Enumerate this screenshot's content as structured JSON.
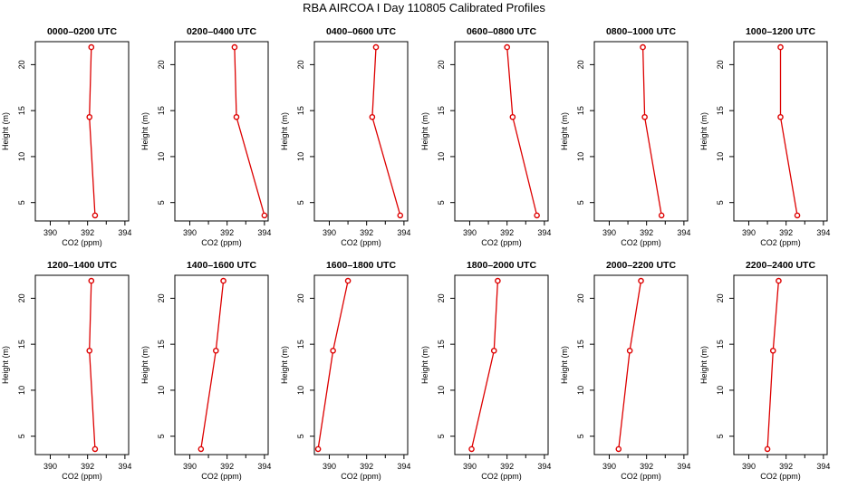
{
  "page": {
    "title": "RBA AIRCOA I  Day 110805  Calibrated Profiles"
  },
  "style": {
    "line_color": "#dd0000",
    "marker_color": "#dd0000",
    "axis_color": "#000000"
  },
  "chart_data": [
    {
      "type": "line",
      "title": "0000–0200 UTC",
      "xlabel": "CO2 (ppm)",
      "ylabel": "Height (m)",
      "xlim": [
        389.2,
        394.2
      ],
      "ylim": [
        3,
        22.5
      ],
      "xticks": [
        390,
        392,
        394
      ],
      "minor_xticks": [
        391,
        393
      ],
      "yticks": [
        5,
        10,
        15,
        20
      ],
      "x": [
        392.2,
        392.1,
        392.4
      ],
      "y": [
        21.9,
        14.3,
        3.6
      ]
    },
    {
      "type": "line",
      "title": "0200–0400 UTC",
      "xlabel": "CO2 (ppm)",
      "ylabel": "Height (m)",
      "xlim": [
        389.2,
        394.2
      ],
      "ylim": [
        3,
        22.5
      ],
      "xticks": [
        390,
        392,
        394
      ],
      "minor_xticks": [
        391,
        393
      ],
      "yticks": [
        5,
        10,
        15,
        20
      ],
      "x": [
        392.4,
        392.5,
        394.0
      ],
      "y": [
        21.9,
        14.3,
        3.6
      ]
    },
    {
      "type": "line",
      "title": "0400–0600 UTC",
      "xlabel": "CO2 (ppm)",
      "ylabel": "Height (m)",
      "xlim": [
        389.2,
        394.2
      ],
      "ylim": [
        3,
        22.5
      ],
      "xticks": [
        390,
        392,
        394
      ],
      "minor_xticks": [
        391,
        393
      ],
      "yticks": [
        5,
        10,
        15,
        20
      ],
      "x": [
        392.5,
        392.3,
        393.8
      ],
      "y": [
        21.9,
        14.3,
        3.6
      ]
    },
    {
      "type": "line",
      "title": "0600–0800 UTC",
      "xlabel": "CO2 (ppm)",
      "ylabel": "Height (m)",
      "xlim": [
        389.2,
        394.2
      ],
      "ylim": [
        3,
        22.5
      ],
      "xticks": [
        390,
        392,
        394
      ],
      "minor_xticks": [
        391,
        393
      ],
      "yticks": [
        5,
        10,
        15,
        20
      ],
      "x": [
        392.0,
        392.3,
        393.6
      ],
      "y": [
        21.9,
        14.3,
        3.6
      ]
    },
    {
      "type": "line",
      "title": "0800–1000 UTC",
      "xlabel": "CO2 (ppm)",
      "ylabel": "Height (m)",
      "xlim": [
        389.2,
        394.2
      ],
      "ylim": [
        3,
        22.5
      ],
      "xticks": [
        390,
        392,
        394
      ],
      "minor_xticks": [
        391,
        393
      ],
      "yticks": [
        5,
        10,
        15,
        20
      ],
      "x": [
        391.8,
        391.9,
        392.8
      ],
      "y": [
        21.9,
        14.3,
        3.6
      ]
    },
    {
      "type": "line",
      "title": "1000–1200 UTC",
      "xlabel": "CO2 (ppm)",
      "ylabel": "Height (m)",
      "xlim": [
        389.2,
        394.2
      ],
      "ylim": [
        3,
        22.5
      ],
      "xticks": [
        390,
        392,
        394
      ],
      "minor_xticks": [
        391,
        393
      ],
      "yticks": [
        5,
        10,
        15,
        20
      ],
      "x": [
        391.7,
        391.7,
        392.6
      ],
      "y": [
        21.9,
        14.3,
        3.6
      ]
    },
    {
      "type": "line",
      "title": "1200–1400 UTC",
      "xlabel": "CO2 (ppm)",
      "ylabel": "Height (m)",
      "xlim": [
        389.2,
        394.2
      ],
      "ylim": [
        3,
        22.5
      ],
      "xticks": [
        390,
        392,
        394
      ],
      "minor_xticks": [
        391,
        393
      ],
      "yticks": [
        5,
        10,
        15,
        20
      ],
      "x": [
        392.2,
        392.1,
        392.4
      ],
      "y": [
        21.9,
        14.3,
        3.6
      ]
    },
    {
      "type": "line",
      "title": "1400–1600 UTC",
      "xlabel": "CO2 (ppm)",
      "ylabel": "Height (m)",
      "xlim": [
        389.2,
        394.2
      ],
      "ylim": [
        3,
        22.5
      ],
      "xticks": [
        390,
        392,
        394
      ],
      "minor_xticks": [
        391,
        393
      ],
      "yticks": [
        5,
        10,
        15,
        20
      ],
      "x": [
        391.8,
        391.4,
        390.6
      ],
      "y": [
        21.9,
        14.3,
        3.6
      ]
    },
    {
      "type": "line",
      "title": "1600–1800 UTC",
      "xlabel": "CO2 (ppm)",
      "ylabel": "Height (m)",
      "xlim": [
        389.2,
        394.2
      ],
      "ylim": [
        3,
        22.5
      ],
      "xticks": [
        390,
        392,
        394
      ],
      "minor_xticks": [
        391,
        393
      ],
      "yticks": [
        5,
        10,
        15,
        20
      ],
      "x": [
        391.0,
        390.2,
        389.4
      ],
      "y": [
        21.9,
        14.3,
        3.6
      ]
    },
    {
      "type": "line",
      "title": "1800–2000 UTC",
      "xlabel": "CO2 (ppm)",
      "ylabel": "Height (m)",
      "xlim": [
        389.2,
        394.2
      ],
      "ylim": [
        3,
        22.5
      ],
      "xticks": [
        390,
        392,
        394
      ],
      "minor_xticks": [
        391,
        393
      ],
      "yticks": [
        5,
        10,
        15,
        20
      ],
      "x": [
        391.5,
        391.3,
        390.1
      ],
      "y": [
        21.9,
        14.3,
        3.6
      ]
    },
    {
      "type": "line",
      "title": "2000–2200 UTC",
      "xlabel": "CO2 (ppm)",
      "ylabel": "Height (m)",
      "xlim": [
        389.2,
        394.2
      ],
      "ylim": [
        3,
        22.5
      ],
      "xticks": [
        390,
        392,
        394
      ],
      "minor_xticks": [
        391,
        393
      ],
      "yticks": [
        5,
        10,
        15,
        20
      ],
      "x": [
        391.7,
        391.1,
        390.5
      ],
      "y": [
        21.9,
        14.3,
        3.6
      ]
    },
    {
      "type": "line",
      "title": "2200–2400 UTC",
      "xlabel": "CO2 (ppm)",
      "ylabel": "Height (m)",
      "xlim": [
        389.2,
        394.2
      ],
      "ylim": [
        3,
        22.5
      ],
      "xticks": [
        390,
        392,
        394
      ],
      "minor_xticks": [
        391,
        393
      ],
      "yticks": [
        5,
        10,
        15,
        20
      ],
      "x": [
        391.6,
        391.3,
        391.0
      ],
      "y": [
        21.9,
        14.3,
        3.6
      ]
    }
  ]
}
